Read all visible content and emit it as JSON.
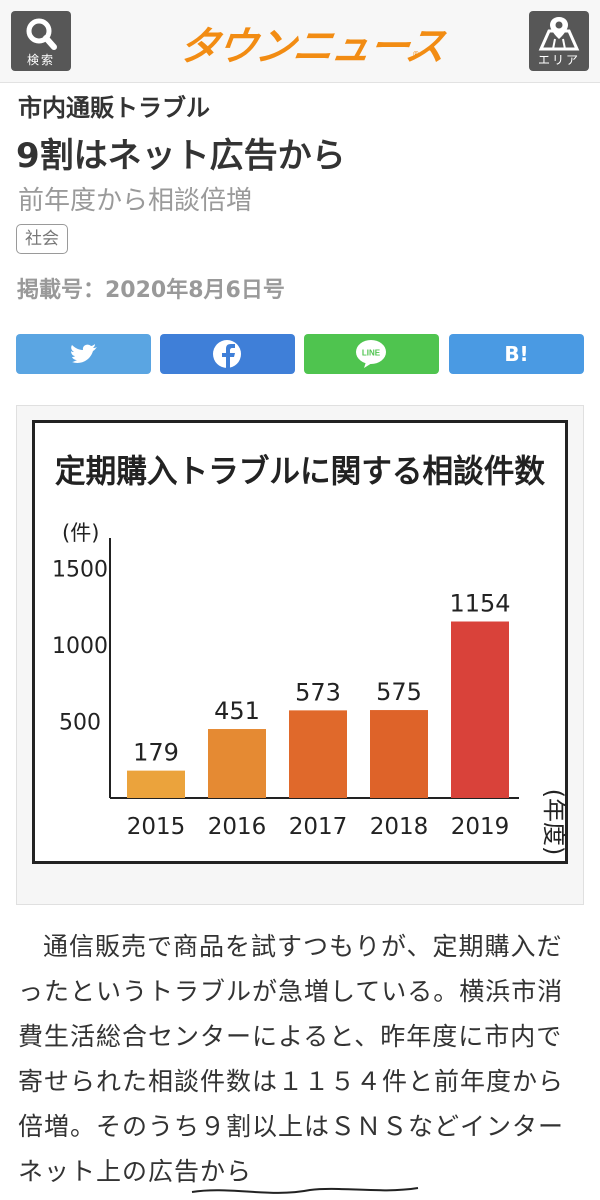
{
  "header": {
    "search_label": "検索",
    "logo_text": "タウンニュース",
    "logo_mark": "®",
    "area_label": "エリア",
    "colors": {
      "bar": "#f7f7f7",
      "button": "#575757",
      "logo": "#f28c13"
    }
  },
  "article": {
    "category": "市内通販トラブル",
    "headline": "9割はネット広告から",
    "subtitle": "前年度から相談倍増",
    "tag": "社会",
    "issue": "掲載号：2020年8月6日号",
    "paragraph": "通信販売で商品を試すつもりが、定期購入だったというトラブルが急増している。横浜市消費生活総合センターによると、昨年度に市内で寄せられた相談件数は１１５４件と前年度から倍増。そのうち９割以上はＳＮＳなどインターネット上の広告から"
  },
  "share": {
    "twitter_icon": "twitter-bird",
    "facebook_icon": "facebook-f",
    "line_icon": "line-bubble",
    "line_text": "LINE",
    "hatena_label": "B!",
    "colors": {
      "twitter": "#5aa5e2",
      "facebook": "#3f7fd8",
      "line": "#4fc44f",
      "hatena": "#4a9ae3"
    }
  },
  "chart_data": {
    "type": "bar",
    "title": "定期購入トラブルに関する相談件数",
    "ylabel": "(件)",
    "xlabel": "(年度)",
    "categories": [
      "2015",
      "2016",
      "2017",
      "2018",
      "2019"
    ],
    "values": [
      179,
      451,
      573,
      575,
      1154
    ],
    "yticks": [
      "500",
      "1000",
      "1500"
    ],
    "ylim": [
      0,
      1700
    ],
    "colors": [
      "#eba33c",
      "#e58a33",
      "#e0692b",
      "#de6329",
      "#d9423a"
    ],
    "grid": false,
    "legend": "none"
  }
}
